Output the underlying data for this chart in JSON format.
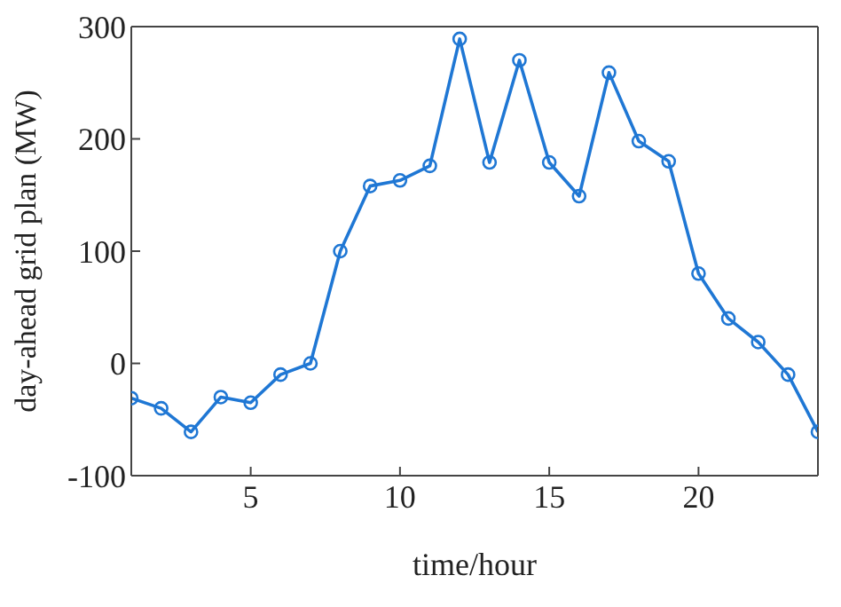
{
  "chart_data": {
    "type": "line",
    "xlabel": "time/hour",
    "ylabel": "day-ahead grid plan (MW)",
    "x": [
      1,
      2,
      3,
      4,
      5,
      6,
      7,
      8,
      9,
      10,
      11,
      12,
      13,
      14,
      15,
      16,
      17,
      18,
      19,
      20,
      21,
      22,
      23,
      24
    ],
    "series": [
      {
        "color": "#1f77d4",
        "values": [
          -31,
          -40,
          -61,
          -30,
          -35,
          -10,
          0,
          100,
          158,
          163,
          176,
          289,
          179,
          270,
          179,
          149,
          259,
          198,
          180,
          80,
          40,
          19,
          -10,
          -61
        ]
      }
    ],
    "xlim": [
      1,
      24
    ],
    "xticks": [
      5,
      10,
      15,
      20
    ],
    "ylim": [
      -100,
      300
    ],
    "yticks": [
      -100,
      0,
      100,
      200,
      300
    ],
    "marker": "circle",
    "line_style": "solid",
    "grid": false,
    "legend": false
  }
}
